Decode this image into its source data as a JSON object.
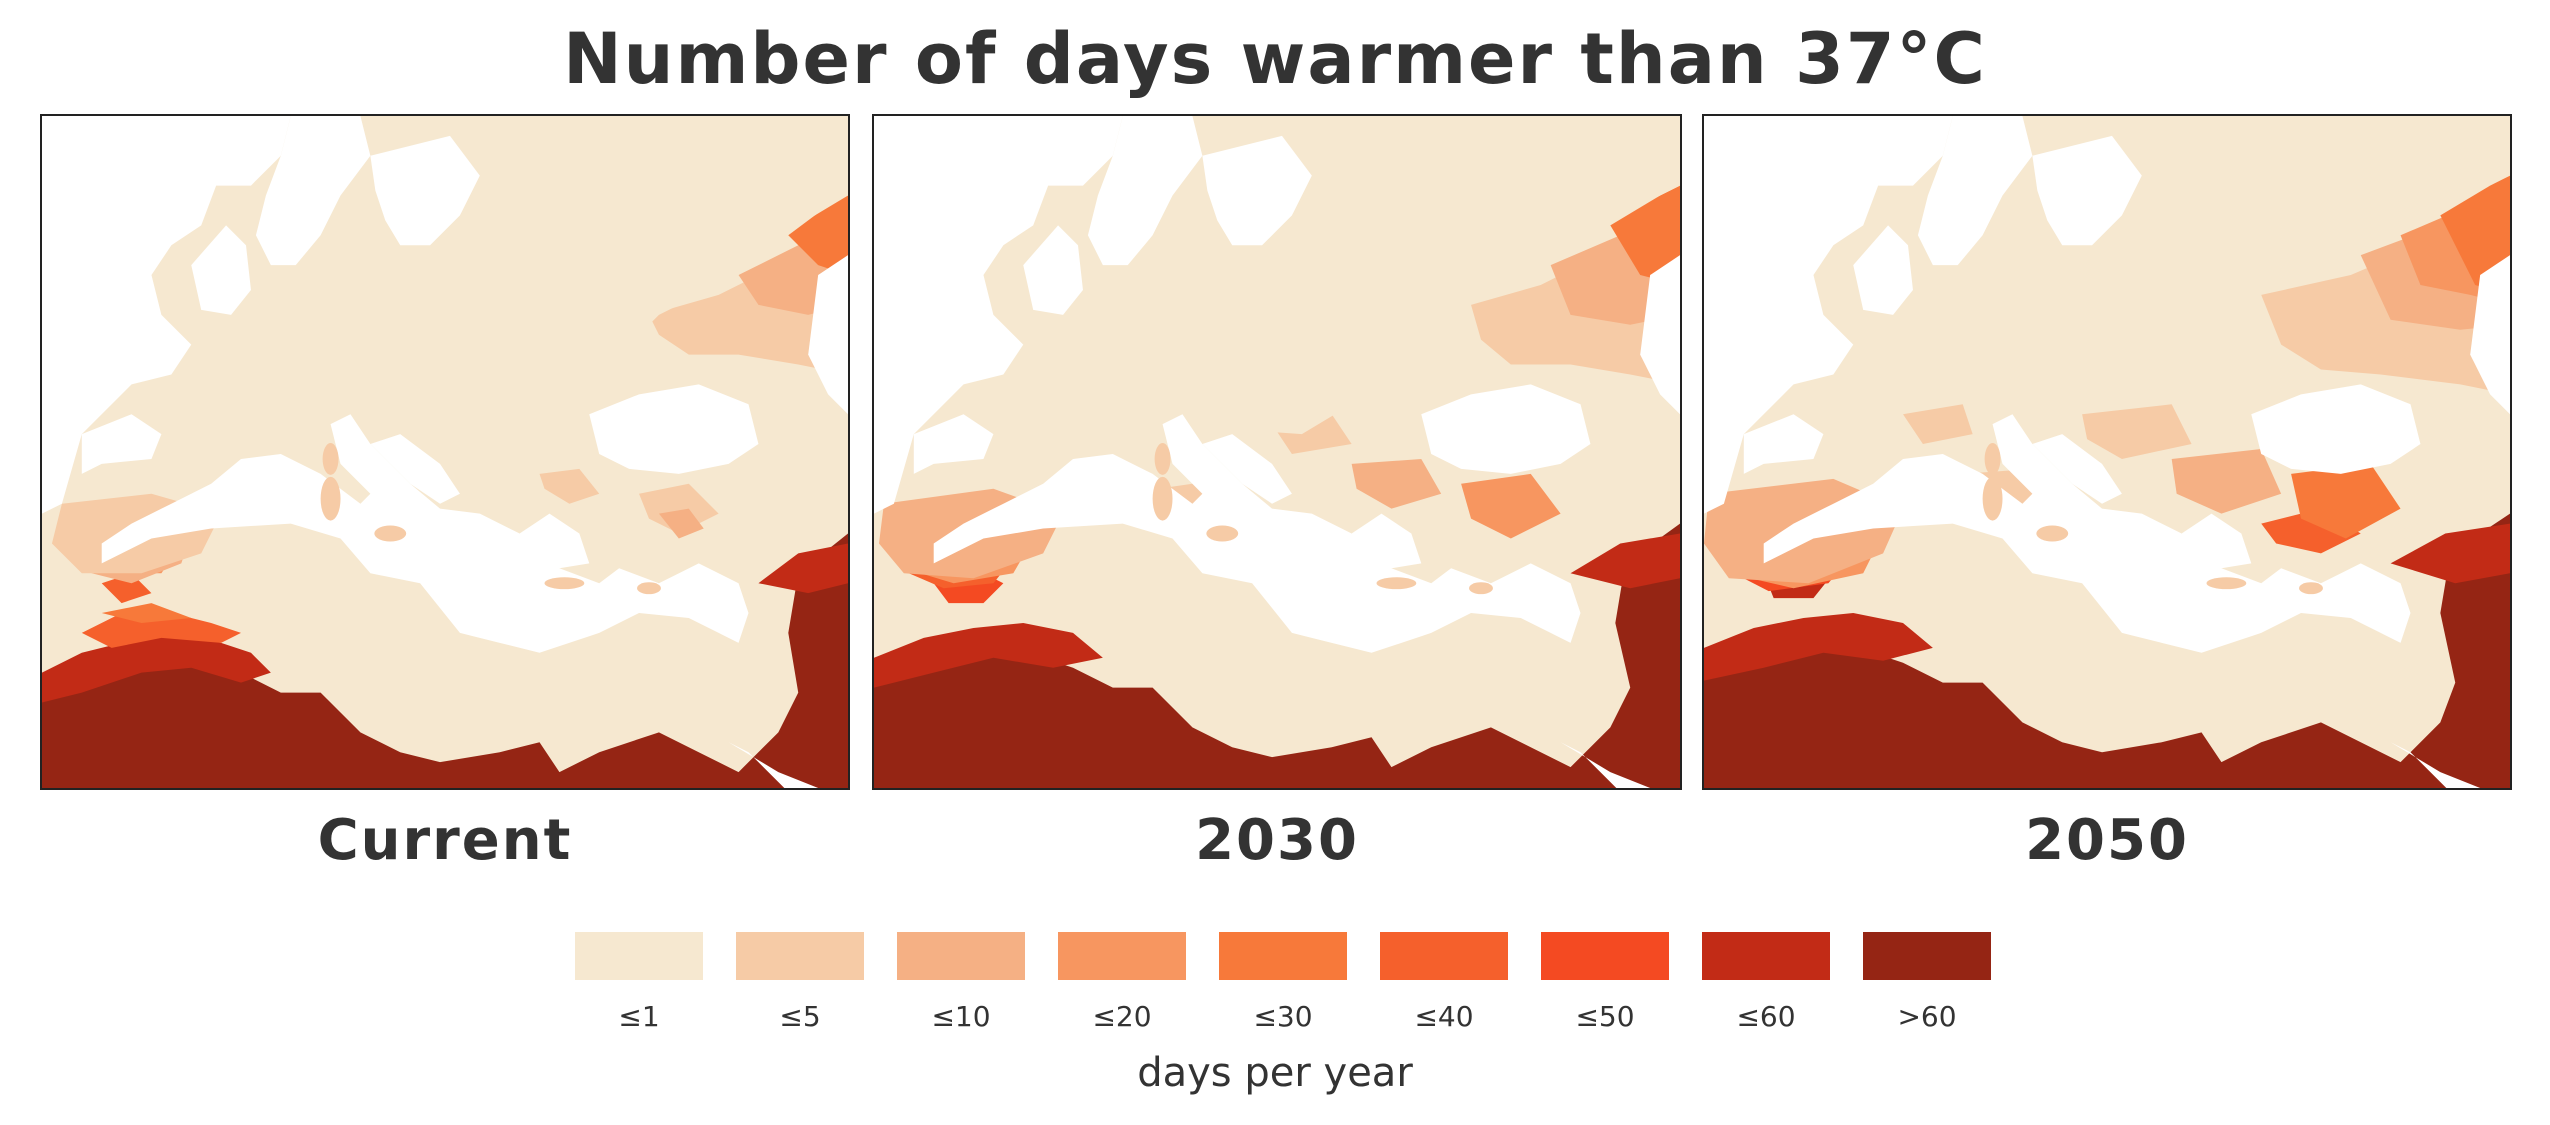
{
  "title": "Number of days warmer than 37°C",
  "panels": [
    {
      "label": "Current",
      "scenario": "current"
    },
    {
      "label": "2030",
      "scenario": "2030"
    },
    {
      "label": "2050",
      "scenario": "2050"
    }
  ],
  "legend": {
    "unit": "days per year",
    "bins": [
      {
        "label": "≤1",
        "color": "#f6e8d0"
      },
      {
        "label": "≤5",
        "color": "#f6cba6"
      },
      {
        "label": "≤10",
        "color": "#f5b084"
      },
      {
        "label": "≤20",
        "color": "#f79660"
      },
      {
        "label": "≤30",
        "color": "#f7793a"
      },
      {
        "label": "≤40",
        "color": "#f5602c"
      },
      {
        "label": "≤50",
        "color": "#f44a22"
      },
      {
        "label": "≤60",
        "color": "#c22b16"
      },
      {
        "label": ">60",
        "color": "#952514"
      }
    ]
  },
  "colors": {
    "sea": "#ffffff",
    "border": "#222222",
    "text": "#333333"
  }
}
